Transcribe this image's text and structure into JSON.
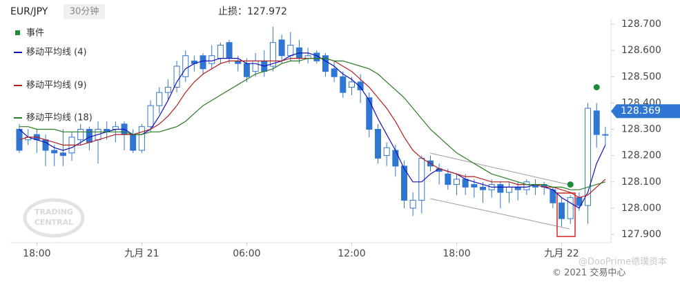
{
  "chart_data": {
    "type": "candlestick",
    "symbol": "EUR/JPY",
    "timeframe": "30分钟",
    "stop_loss_text": "止损：127.972",
    "watermark": "TRADING\nCENTRAL",
    "footer": "© 2021 交易中心",
    "source_watermark": "@DooPrime德璞资本",
    "candle_color": "#2f76d2",
    "categories": [
      null,
      null,
      "18:00",
      null,
      null,
      null,
      null,
      null,
      null,
      null,
      null,
      null,
      null,
      null,
      "九月 21",
      null,
      null,
      null,
      null,
      null,
      null,
      null,
      null,
      null,
      null,
      null,
      "06:00",
      null,
      null,
      null,
      null,
      null,
      null,
      null,
      null,
      null,
      null,
      null,
      "12:00",
      null,
      null,
      null,
      null,
      null,
      null,
      null,
      null,
      null,
      null,
      null,
      "18:00",
      null,
      null,
      null,
      null,
      null,
      null,
      null,
      null,
      null,
      null,
      null,
      "九月 22",
      null,
      null,
      null,
      null,
      null
    ],
    "open": [
      128.3,
      128.26,
      128.28,
      128.26,
      128.22,
      128.21,
      128.21,
      128.26,
      128.3,
      128.26,
      128.3,
      128.3,
      128.32,
      128.28,
      128.22,
      128.31,
      128.39,
      128.44,
      128.46,
      128.5,
      128.56,
      128.58,
      128.55,
      128.57,
      128.63,
      128.56,
      128.55,
      128.52,
      128.56,
      128.54,
      128.64,
      128.58,
      128.61,
      128.57,
      128.59,
      128.58,
      128.53,
      128.5,
      128.46,
      128.48,
      128.42,
      128.3,
      128.2,
      128.22,
      128.16,
      128.0,
      128.03,
      128.18,
      128.15,
      128.13,
      128.09,
      128.11,
      128.09,
      128.08,
      128.07,
      128.09,
      128.06,
      128.08,
      128.07,
      128.09,
      128.09,
      128.07,
      128.02,
      127.96,
      128.04,
      128.01,
      128.37,
      128.28
    ],
    "high": [
      128.32,
      128.3,
      128.3,
      128.28,
      128.24,
      128.3,
      128.29,
      128.32,
      128.31,
      128.33,
      128.33,
      128.33,
      128.33,
      128.3,
      128.32,
      128.41,
      128.46,
      128.49,
      128.56,
      128.6,
      128.58,
      128.59,
      128.62,
      128.63,
      128.64,
      128.58,
      128.57,
      128.59,
      128.6,
      128.69,
      128.66,
      128.67,
      128.64,
      128.61,
      128.6,
      128.59,
      128.56,
      128.52,
      128.5,
      128.51,
      128.44,
      128.32,
      128.25,
      128.24,
      128.18,
      128.06,
      128.2,
      128.2,
      128.17,
      128.15,
      128.13,
      128.13,
      128.11,
      128.1,
      128.11,
      128.1,
      128.1,
      128.1,
      128.11,
      128.11,
      128.1,
      128.08,
      128.04,
      128.05,
      128.06,
      128.4,
      128.4,
      128.31
    ],
    "low": [
      128.21,
      128.24,
      128.21,
      128.16,
      128.16,
      128.16,
      128.18,
      128.24,
      128.22,
      128.17,
      128.26,
      128.25,
      128.22,
      128.21,
      128.21,
      128.29,
      128.36,
      128.41,
      128.44,
      128.48,
      128.52,
      128.51,
      128.53,
      128.55,
      128.55,
      128.52,
      128.48,
      128.5,
      128.5,
      128.52,
      128.55,
      128.56,
      128.55,
      128.55,
      128.55,
      128.5,
      128.48,
      128.42,
      128.43,
      128.4,
      128.27,
      128.17,
      128.16,
      128.12,
      128.0,
      127.97,
      127.98,
      128.14,
      128.09,
      128.07,
      128.05,
      128.05,
      128.04,
      128.02,
      128.04,
      128.0,
      128.02,
      128.03,
      128.05,
      128.05,
      128.05,
      128.0,
      127.93,
      127.94,
      127.99,
      127.94,
      128.23,
      128.24
    ],
    "close": [
      128.22,
      128.27,
      128.26,
      128.22,
      128.21,
      128.2,
      128.27,
      128.3,
      128.25,
      128.3,
      128.29,
      128.31,
      128.28,
      128.22,
      128.31,
      128.39,
      128.44,
      128.46,
      128.54,
      128.58,
      128.55,
      128.53,
      128.58,
      128.62,
      128.57,
      128.55,
      128.5,
      128.56,
      128.52,
      128.63,
      128.58,
      128.62,
      128.57,
      128.58,
      128.56,
      128.52,
      128.5,
      128.44,
      128.48,
      128.45,
      128.3,
      128.19,
      128.23,
      128.16,
      128.03,
      128.03,
      128.19,
      128.16,
      128.14,
      128.09,
      128.11,
      128.08,
      128.08,
      128.07,
      128.09,
      128.06,
      128.08,
      128.07,
      128.1,
      128.08,
      128.08,
      128.02,
      127.96,
      128.04,
      128.01,
      128.38,
      128.28,
      128.28
    ],
    "series": [
      {
        "name": "移动平均线 (4)",
        "color": "#1010b8",
        "values": [
          128.3,
          128.27,
          128.26,
          128.25,
          128.23,
          128.22,
          128.23,
          128.25,
          128.27,
          128.28,
          128.29,
          128.3,
          128.3,
          128.28,
          128.28,
          128.3,
          128.35,
          128.41,
          128.48,
          128.53,
          128.55,
          128.56,
          128.56,
          128.57,
          128.57,
          128.57,
          128.55,
          128.55,
          128.54,
          128.55,
          128.56,
          128.58,
          128.59,
          128.59,
          128.58,
          128.56,
          128.54,
          128.51,
          128.49,
          128.46,
          128.41,
          128.34,
          128.28,
          128.22,
          128.15,
          128.1,
          128.1,
          128.13,
          128.15,
          128.14,
          128.13,
          128.11,
          128.1,
          128.09,
          128.08,
          128.08,
          128.08,
          128.08,
          128.08,
          128.09,
          128.08,
          128.07,
          128.04,
          128.02,
          128.0,
          128.06,
          128.17,
          128.24
        ]
      },
      {
        "name": "移动平均线 (9)",
        "color": "#b51c1c",
        "values": [
          128.26,
          128.27,
          128.27,
          128.26,
          128.25,
          128.24,
          128.24,
          128.24,
          128.25,
          128.26,
          128.27,
          128.28,
          128.28,
          128.28,
          128.29,
          128.3,
          128.32,
          128.35,
          128.39,
          128.44,
          128.48,
          128.51,
          128.53,
          128.55,
          128.56,
          128.56,
          128.56,
          128.56,
          128.56,
          128.56,
          128.56,
          128.57,
          128.57,
          128.57,
          128.57,
          128.57,
          128.56,
          128.54,
          128.52,
          128.49,
          128.46,
          128.42,
          128.38,
          128.33,
          128.27,
          128.22,
          128.19,
          128.17,
          128.15,
          128.14,
          128.13,
          128.12,
          128.12,
          128.11,
          128.1,
          128.1,
          128.1,
          128.09,
          128.09,
          128.09,
          128.08,
          128.08,
          128.07,
          128.06,
          128.04,
          128.05,
          128.08,
          128.11
        ]
      },
      {
        "name": "移动平均线 (18)",
        "color": "#2a7a22",
        "values": [
          128.31,
          128.31,
          128.3,
          128.3,
          128.3,
          128.29,
          128.29,
          128.29,
          128.29,
          128.29,
          128.29,
          128.29,
          128.29,
          128.28,
          128.28,
          128.29,
          128.29,
          128.3,
          128.31,
          128.33,
          128.36,
          128.39,
          128.41,
          128.43,
          128.45,
          128.47,
          128.49,
          128.51,
          128.52,
          128.53,
          128.55,
          128.56,
          128.56,
          128.57,
          128.57,
          128.57,
          128.56,
          128.56,
          128.55,
          128.54,
          128.53,
          128.51,
          128.48,
          128.45,
          128.42,
          128.38,
          128.34,
          128.3,
          128.27,
          128.24,
          128.21,
          128.19,
          128.17,
          128.15,
          128.13,
          128.12,
          128.11,
          128.1,
          128.09,
          128.09,
          128.09,
          128.08,
          128.08,
          128.07,
          128.07,
          128.08,
          128.09,
          128.1
        ]
      }
    ],
    "events": {
      "name": "事件",
      "color": "#1e8a3c",
      "values": [
        null,
        null,
        null,
        null,
        null,
        null,
        null,
        null,
        null,
        null,
        null,
        null,
        null,
        null,
        null,
        null,
        null,
        null,
        null,
        null,
        null,
        null,
        null,
        null,
        null,
        null,
        null,
        null,
        null,
        null,
        null,
        null,
        null,
        null,
        null,
        null,
        null,
        null,
        null,
        null,
        null,
        null,
        null,
        null,
        null,
        null,
        null,
        null,
        null,
        null,
        null,
        null,
        null,
        null,
        null,
        null,
        null,
        null,
        null,
        null,
        null,
        null,
        null,
        128.09,
        null,
        null,
        128.46,
        null
      ]
    },
    "last_price": 128.369,
    "last_price_color": "#2f76d2",
    "ylim": [
      127.866,
      128.744
    ],
    "yticks": [
      {
        "value": 127.9,
        "label": "127.900"
      },
      {
        "value": 128.0,
        "label": "128.000"
      },
      {
        "value": 128.1,
        "label": "128.100"
      },
      {
        "value": 128.2,
        "label": "128.200"
      },
      {
        "value": 128.3,
        "label": "128.300"
      },
      {
        "value": 128.4,
        "label": "128.400"
      },
      {
        "value": 128.5,
        "label": "128.500"
      },
      {
        "value": 128.6,
        "label": "128.600"
      },
      {
        "value": 128.7,
        "label": "128.700"
      }
    ]
  }
}
